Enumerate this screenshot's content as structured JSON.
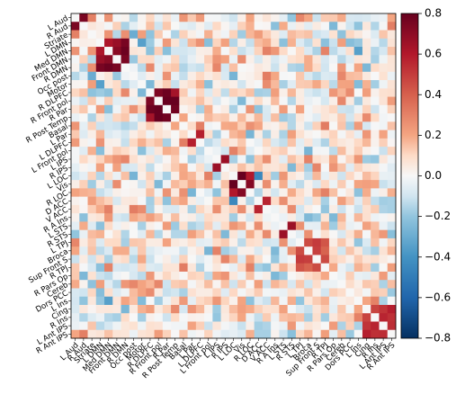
{
  "chart_data": {
    "type": "heatmap",
    "title": "",
    "xlabel": "",
    "ylabel": "",
    "colormap": "RdBu_r",
    "vmin": -0.8,
    "vmax": 0.8,
    "colorbar_ticks": [
      0.8,
      0.6,
      0.4,
      0.2,
      0.0,
      -0.2,
      -0.4,
      -0.6,
      -0.8
    ],
    "colorbar_tick_labels": [
      "0.8",
      "0.6",
      "0.4",
      "0.2",
      "0.0",
      "−0.2",
      "−0.4",
      "−0.6",
      "−0.8"
    ],
    "grid": false,
    "labels": [
      "L Aud",
      "R Aud",
      "Striate",
      "L DMN",
      "Med DMN",
      "Front DMN",
      "R DMN",
      "Occ post",
      "Motor",
      "R DLPFC",
      "R Front pol",
      "R Par",
      "R Post Temp",
      "Basal",
      "L Par",
      "L DLPFC",
      "L Front pol",
      "L IPS",
      "R IPS",
      "L LOC",
      "Vis",
      "R LOC",
      "D ACC",
      "V ACC",
      "R A Ins",
      "L STS",
      "R STS",
      "L TPJ",
      "Broca",
      "Sup Front S",
      "R TPJ",
      "R Pars Op",
      "Cereb",
      "Dors PCC",
      "L Ins",
      "Cing",
      "R Ins",
      "L Ant IPS",
      "R Ant IPS"
    ],
    "strong_blocks": [
      {
        "rows": [
          "L Aud",
          "R Aud"
        ],
        "value": 0.7
      },
      {
        "rows": [
          "L DMN",
          "Med DMN",
          "Front DMN",
          "R DMN"
        ],
        "value": 0.7
      },
      {
        "rows": [
          "R DLPFC",
          "R Front pol",
          "R Par",
          "R Post Temp"
        ],
        "value": 0.72
      },
      {
        "rows": [
          "L Par",
          "L DLPFC"
        ],
        "value": 0.6
      },
      {
        "rows": [
          "L IPS",
          "R IPS"
        ],
        "value": 0.65
      },
      {
        "rows": [
          "L LOC",
          "Vis",
          "R LOC"
        ],
        "value": 0.7
      },
      {
        "rows": [
          "D ACC",
          "V ACC"
        ],
        "value": 0.55
      },
      {
        "rows": [
          "L STS",
          "R STS"
        ],
        "value": 0.75
      },
      {
        "rows": [
          "L TPJ",
          "Broca",
          "Sup Front S",
          "R TPJ"
        ],
        "value": 0.45
      },
      {
        "rows": [
          "Cing",
          "R Ins",
          "L Ant IPS",
          "R Ant IPS"
        ],
        "value": 0.55
      }
    ],
    "notable_negative": [
      {
        "pair": [
          "L DMN",
          "Motor"
        ],
        "value": -0.35
      },
      {
        "pair": [
          "Striate",
          "Occ post"
        ],
        "value": -0.3
      },
      {
        "pair": [
          "L LOC",
          "D ACC"
        ],
        "value": -0.45
      },
      {
        "pair": [
          "L Ins",
          "Med DMN"
        ],
        "value": -0.35
      }
    ]
  }
}
